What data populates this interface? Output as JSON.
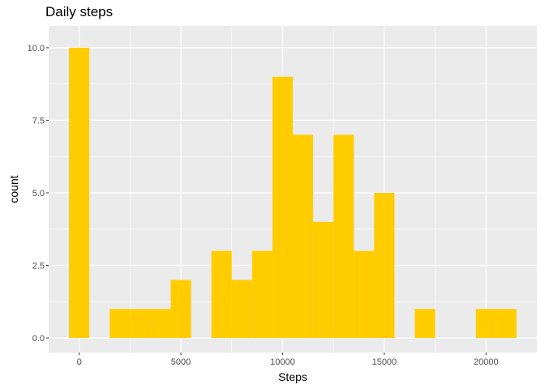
{
  "chart_data": {
    "type": "bar",
    "title": "Daily steps",
    "xlabel": "Steps",
    "ylabel": "count",
    "bin_width": 1000,
    "bin_centers": [
      0,
      1000,
      2000,
      3000,
      4000,
      5000,
      6000,
      7000,
      8000,
      9000,
      10000,
      11000,
      12000,
      13000,
      14000,
      15000,
      16000,
      17000,
      18000,
      19000,
      20000,
      21000
    ],
    "values": [
      10,
      0,
      1,
      1,
      1,
      2,
      0,
      3,
      2,
      3,
      9,
      7,
      4,
      7,
      3,
      5,
      0,
      1,
      0,
      0,
      1,
      1
    ],
    "xlim": [
      -1500,
      22500
    ],
    "ylim": [
      -0.5,
      10.75
    ],
    "x_ticks": [
      0,
      5000,
      10000,
      15000,
      20000
    ],
    "y_ticks": [
      0,
      2.5,
      5,
      7.5,
      10
    ],
    "x_tick_labels": [
      "0",
      "5000",
      "10000",
      "15000",
      "20000"
    ],
    "y_tick_labels": [
      "0.0",
      "2.5",
      "5.0",
      "7.5",
      "10.0"
    ],
    "bar_color": "#FFCC00",
    "panel_color": "#EBEBEB",
    "grid": true
  }
}
